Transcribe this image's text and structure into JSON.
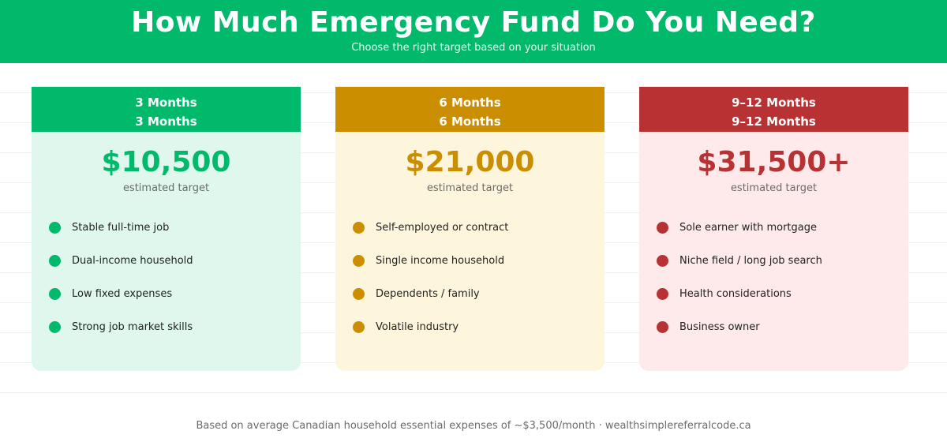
{
  "header": {
    "title": "How Much Emergency Fund Do You Need?",
    "subtitle": "Choose the right target based on your situation"
  },
  "colors": {
    "green": "#00b96b",
    "gold": "#cb8e00",
    "red": "#b83233"
  },
  "cards": [
    {
      "label_line1": "3 Months",
      "label_line2": "3 Months",
      "amount": "$10,500",
      "note": "estimated target",
      "items": [
        "Stable full-time job",
        "Dual-income household",
        "Low fixed expenses",
        "Strong job market skills"
      ]
    },
    {
      "label_line1": "6 Months",
      "label_line2": "6 Months",
      "amount": "$21,000",
      "note": "estimated target",
      "items": [
        "Self-employed or contract",
        "Single income household",
        "Dependents / family",
        "Volatile industry"
      ]
    },
    {
      "label_line1": "9–12 Months",
      "label_line2": "9–12 Months",
      "amount": "$31,500+",
      "note": "estimated target",
      "items": [
        "Sole earner with mortgage",
        "Niche field / long job search",
        "Health considerations",
        "Business owner"
      ]
    }
  ],
  "footer": {
    "text": "Based on average Canadian household essential expenses of ~$3,500/month  ·  wealthsimplereferralcode.ca"
  }
}
